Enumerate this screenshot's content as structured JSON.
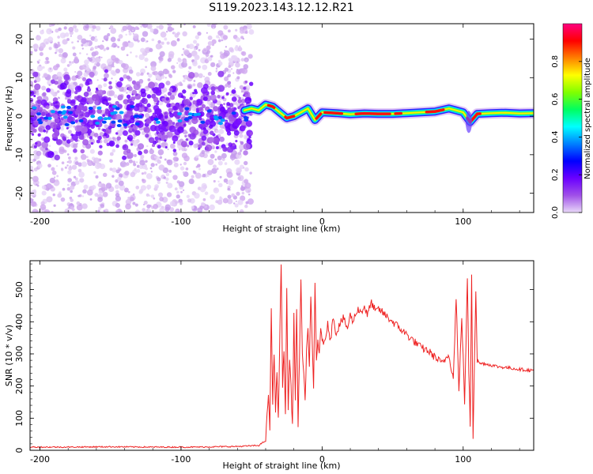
{
  "title": "S119.2023.143.12.12.R21",
  "chart_data": [
    {
      "type": "heatmap",
      "title": "",
      "xlabel": "Height of straight line (km)",
      "ylabel": "Frequency (Hz)",
      "xlim": [
        -207,
        150
      ],
      "ylim": [
        -25,
        24
      ],
      "x_ticks": [
        -200,
        -100,
        0,
        100
      ],
      "y_ticks": [
        -20,
        -10,
        0,
        10,
        20
      ],
      "x_tick_labels": [
        "-200",
        "-100",
        "0",
        "100"
      ],
      "y_tick_labels": [
        "-20",
        "-10",
        "0",
        "10",
        "20"
      ],
      "grid": false,
      "colorbar": {
        "label": "Normalized spectral amplitude",
        "range": [
          0.0,
          1.0
        ],
        "ticks": [
          0.0,
          0.2,
          0.4,
          0.6,
          0.8
        ],
        "tick_labels": [
          "0.0",
          "0.2",
          "0.4",
          "0.6",
          "0.8"
        ],
        "colormap": [
          "#e8d8f8",
          "#a050e8",
          "#6a00ff",
          "#0000ff",
          "#0080ff",
          "#00ffff",
          "#00ff60",
          "#80ff00",
          "#ffff00",
          "#ff8000",
          "#ff0000",
          "#ff0080"
        ]
      },
      "carrier_trace": {
        "x": [
          -55,
          -50,
          -45,
          -40,
          -35,
          -30,
          -25,
          -20,
          -15,
          -10,
          -5,
          0,
          10,
          20,
          30,
          40,
          50,
          60,
          70,
          80,
          90,
          95,
          100,
          105,
          110,
          120,
          130,
          140,
          150
        ],
        "y": [
          1.5,
          2.0,
          1.5,
          3.0,
          2.5,
          1.0,
          -0.5,
          0.0,
          1.0,
          2.0,
          -1.0,
          1.0,
          0.8,
          0.5,
          0.7,
          0.6,
          0.6,
          0.8,
          1.0,
          1.2,
          2.0,
          1.5,
          1.0,
          -1.5,
          0.6,
          0.8,
          0.9,
          0.7,
          0.8
        ]
      },
      "noise_extent_x": [
        -207,
        -50
      ]
    },
    {
      "type": "line",
      "title": "",
      "xlabel": "Height of straight line (km)",
      "ylabel": "SNR (10 * v/v)",
      "xlim": [
        -207,
        150
      ],
      "ylim": [
        0,
        590
      ],
      "x_ticks": [
        -200,
        -100,
        0,
        100
      ],
      "y_ticks": [
        0,
        100,
        200,
        300,
        400,
        500
      ],
      "x_tick_labels": [
        "-200",
        "-100",
        "0",
        "100"
      ],
      "y_tick_labels": [
        "0",
        "100",
        "200",
        "300",
        "400",
        "500"
      ],
      "grid": false,
      "series": [
        {
          "name": "",
          "color": "#ee2222",
          "x": [
            -207,
            -180,
            -150,
            -120,
            -90,
            -60,
            -45,
            -40,
            -38,
            -37,
            -36,
            -35,
            -34,
            -33,
            -32,
            -31,
            -30,
            -29,
            -28,
            -27,
            -26,
            -25,
            -24,
            -23,
            -22,
            -21,
            -20,
            -19,
            -18,
            -17,
            -16,
            -15,
            -14,
            -13,
            -12,
            -11,
            -10,
            -9,
            -8,
            -7,
            -6,
            -5,
            -4,
            -3,
            -2,
            -1,
            0,
            2,
            4,
            6,
            8,
            10,
            12,
            15,
            18,
            20,
            22,
            25,
            28,
            30,
            32,
            35,
            38,
            40,
            45,
            50,
            55,
            60,
            65,
            70,
            75,
            80,
            85,
            90,
            93,
            95,
            97,
            99,
            101,
            103,
            104,
            105,
            106,
            107,
            108,
            109,
            110,
            112,
            115,
            120,
            125,
            130,
            135,
            140,
            145,
            150
          ],
          "y": [
            10,
            10,
            11,
            10,
            10,
            12,
            15,
            30,
            180,
            60,
            440,
            150,
            310,
            120,
            250,
            90,
            340,
            590,
            200,
            320,
            110,
            500,
            130,
            280,
            200,
            70,
            420,
            160,
            440,
            70,
            300,
            540,
            290,
            230,
            160,
            310,
            380,
            260,
            470,
            330,
            190,
            520,
            280,
            350,
            290,
            370,
            350,
            330,
            400,
            340,
            420,
            360,
            390,
            410,
            380,
            420,
            400,
            440,
            430,
            450,
            420,
            460,
            430,
            440,
            420,
            400,
            380,
            360,
            340,
            320,
            310,
            290,
            270,
            300,
            220,
            480,
            180,
            420,
            150,
            530,
            250,
            80,
            550,
            40,
            290,
            500,
            280,
            270,
            270,
            265,
            260,
            258,
            255,
            252,
            250,
            248
          ]
        }
      ]
    }
  ]
}
